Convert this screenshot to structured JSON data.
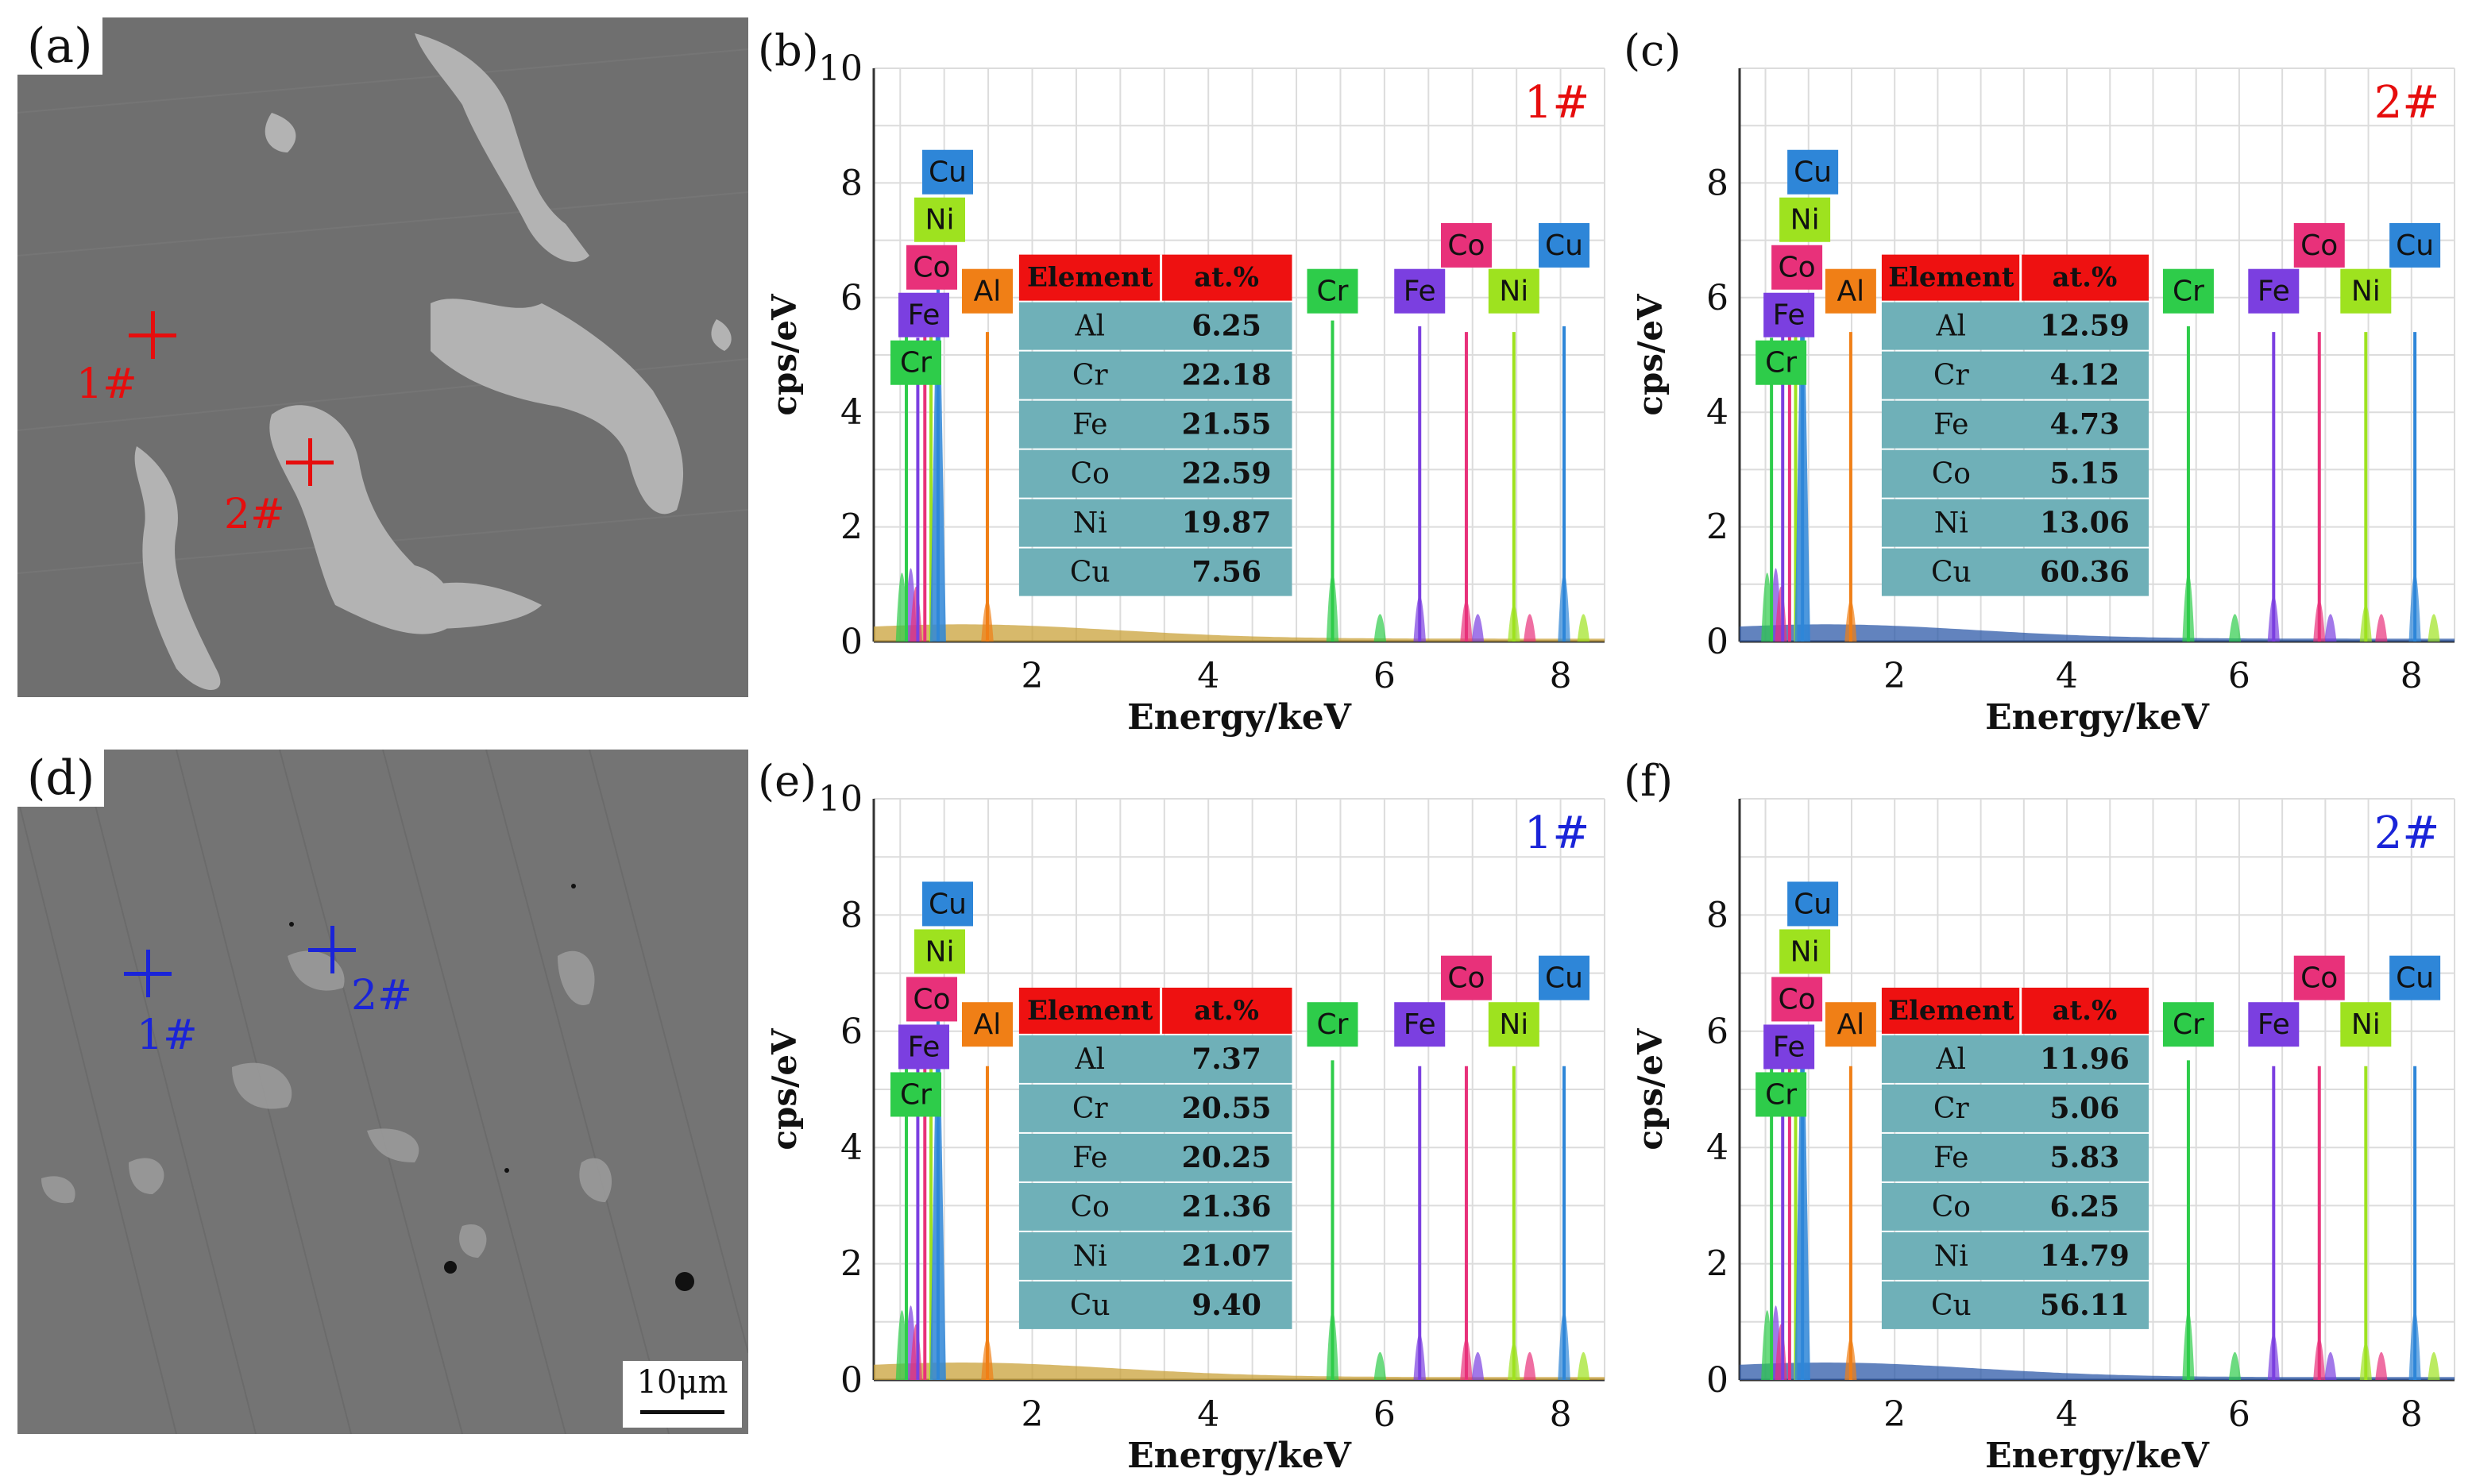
{
  "colors": {
    "Cr": "#2ecc4a",
    "Al": "#f07f16",
    "Fe": "#7b3fe0",
    "Co": "#e8317a",
    "Ni": "#9ee21f",
    "Cu": "#2e86d8",
    "background": "#2d5aa8",
    "marker_red": "#e60d0d",
    "marker_blue": "#1a24d8",
    "table_header": "#ee1111",
    "table_body": "#6fb0b8"
  },
  "panels": [
    {
      "label": "(a)",
      "type": "sem",
      "markers": [
        {
          "id": "1#",
          "color": "red"
        },
        {
          "id": "2#",
          "color": "red"
        }
      ]
    },
    {
      "label": "(d)",
      "type": "sem",
      "scale_bar": "10μm",
      "markers": [
        {
          "id": "1#",
          "color": "blue"
        },
        {
          "id": "2#",
          "color": "blue"
        }
      ]
    }
  ],
  "chart_data": [
    {
      "panel": "(b)",
      "type": "area",
      "tag": "1#",
      "tag_color": "#e60d0d",
      "xlabel": "Energy/keV",
      "ylabel": "cps/eV",
      "xlim": [
        0.2,
        8.5
      ],
      "ylim": [
        0,
        10
      ],
      "xticks": [
        "2",
        "4",
        "6",
        "8"
      ],
      "yticks": [
        "0",
        "2",
        "4",
        "6",
        "8",
        "10"
      ],
      "peaks": [
        {
          "x": 0.57,
          "y": 5.5,
          "el": "Cr"
        },
        {
          "x": 0.7,
          "y": 5.3,
          "el": "Fe"
        },
        {
          "x": 0.78,
          "y": 5.4,
          "el": "Co"
        },
        {
          "x": 0.85,
          "y": 5.4,
          "el": "Ni"
        },
        {
          "x": 0.93,
          "y": 6.2,
          "el": "Cu"
        },
        {
          "x": 1.49,
          "y": 5.4,
          "el": "Al"
        },
        {
          "x": 5.41,
          "y": 5.6,
          "el": "Cr"
        },
        {
          "x": 6.4,
          "y": 5.5,
          "el": "Fe"
        },
        {
          "x": 6.93,
          "y": 5.4,
          "el": "Co"
        },
        {
          "x": 7.47,
          "y": 5.4,
          "el": "Ni"
        },
        {
          "x": 8.04,
          "y": 5.5,
          "el": "Cu"
        }
      ],
      "left_labels": [
        "Cu",
        "Ni",
        "Co",
        "Fe",
        "Cr"
      ],
      "right_labels": [
        "Al",
        "Cr",
        "Fe",
        "Co",
        "Ni",
        "Cu"
      ],
      "table": {
        "headers": [
          "Element",
          "at.%"
        ],
        "rows": [
          [
            "Al",
            "6.25"
          ],
          [
            "Cr",
            "22.18"
          ],
          [
            "Fe",
            "21.55"
          ],
          [
            "Co",
            "22.59"
          ],
          [
            "Ni",
            "19.87"
          ],
          [
            "Cu",
            "7.56"
          ]
        ]
      }
    },
    {
      "panel": "(c)",
      "type": "area",
      "tag": "2#",
      "tag_color": "#e60d0d",
      "xlabel": "Energy/keV",
      "ylabel": "cps/eV",
      "xlim": [
        0.2,
        8.5
      ],
      "ylim": [
        0,
        10
      ],
      "xticks": [
        "2",
        "4",
        "6",
        "8"
      ],
      "yticks": [
        "0",
        "2",
        "4",
        "6",
        "8"
      ],
      "peaks": [
        {
          "x": 0.57,
          "y": 5.3,
          "el": "Cr"
        },
        {
          "x": 0.7,
          "y": 5.4,
          "el": "Fe"
        },
        {
          "x": 0.78,
          "y": 5.4,
          "el": "Co"
        },
        {
          "x": 0.85,
          "y": 5.4,
          "el": "Ni"
        },
        {
          "x": 0.93,
          "y": 6.0,
          "el": "Cu"
        },
        {
          "x": 1.49,
          "y": 5.4,
          "el": "Al"
        },
        {
          "x": 5.41,
          "y": 5.5,
          "el": "Cr"
        },
        {
          "x": 6.4,
          "y": 5.4,
          "el": "Fe"
        },
        {
          "x": 6.93,
          "y": 5.4,
          "el": "Co"
        },
        {
          "x": 7.47,
          "y": 5.4,
          "el": "Ni"
        },
        {
          "x": 8.04,
          "y": 5.4,
          "el": "Cu"
        }
      ],
      "left_labels": [
        "Cu",
        "Ni",
        "Co",
        "Fe",
        "Cr"
      ],
      "right_labels": [
        "Al",
        "Cr",
        "Fe",
        "Co",
        "Ni",
        "Cu"
      ],
      "table": {
        "headers": [
          "Element",
          "at.%"
        ],
        "rows": [
          [
            "Al",
            "12.59"
          ],
          [
            "Cr",
            "4.12"
          ],
          [
            "Fe",
            "4.73"
          ],
          [
            "Co",
            "5.15"
          ],
          [
            "Ni",
            "13.06"
          ],
          [
            "Cu",
            "60.36"
          ]
        ]
      }
    },
    {
      "panel": "(e)",
      "type": "area",
      "tag": "1#",
      "tag_color": "#1a24d8",
      "xlabel": "Energy/keV",
      "ylabel": "cps/eV",
      "xlim": [
        0.2,
        8.5
      ],
      "ylim": [
        0,
        10
      ],
      "xticks": [
        "2",
        "4",
        "6",
        "8"
      ],
      "yticks": [
        "0",
        "2",
        "4",
        "6",
        "8",
        "10"
      ],
      "peaks": [
        {
          "x": 0.57,
          "y": 5.5,
          "el": "Cr"
        },
        {
          "x": 0.7,
          "y": 5.4,
          "el": "Fe"
        },
        {
          "x": 0.78,
          "y": 5.4,
          "el": "Co"
        },
        {
          "x": 0.85,
          "y": 5.4,
          "el": "Ni"
        },
        {
          "x": 0.93,
          "y": 6.3,
          "el": "Cu"
        },
        {
          "x": 1.49,
          "y": 5.4,
          "el": "Al"
        },
        {
          "x": 5.41,
          "y": 5.5,
          "el": "Cr"
        },
        {
          "x": 6.4,
          "y": 5.4,
          "el": "Fe"
        },
        {
          "x": 6.93,
          "y": 5.4,
          "el": "Co"
        },
        {
          "x": 7.47,
          "y": 5.4,
          "el": "Ni"
        },
        {
          "x": 8.04,
          "y": 5.4,
          "el": "Cu"
        }
      ],
      "left_labels": [
        "Cu",
        "Ni",
        "Co",
        "Fe",
        "Cr"
      ],
      "right_labels": [
        "Al",
        "Cr",
        "Fe",
        "Co",
        "Ni",
        "Cu"
      ],
      "table": {
        "headers": [
          "Element",
          "at.%"
        ],
        "rows": [
          [
            "Al",
            "7.37"
          ],
          [
            "Cr",
            "20.55"
          ],
          [
            "Fe",
            "20.25"
          ],
          [
            "Co",
            "21.36"
          ],
          [
            "Ni",
            "21.07"
          ],
          [
            "Cu",
            "9.40"
          ]
        ]
      }
    },
    {
      "panel": "(f)",
      "type": "area",
      "tag": "2#",
      "tag_color": "#1a24d8",
      "xlabel": "Energy/keV",
      "ylabel": "cps/eV",
      "xlim": [
        0.2,
        8.5
      ],
      "ylim": [
        0,
        10
      ],
      "xticks": [
        "2",
        "4",
        "6",
        "8"
      ],
      "yticks": [
        "0",
        "2",
        "4",
        "6",
        "8"
      ],
      "peaks": [
        {
          "x": 0.57,
          "y": 5.4,
          "el": "Cr"
        },
        {
          "x": 0.7,
          "y": 5.4,
          "el": "Fe"
        },
        {
          "x": 0.78,
          "y": 5.4,
          "el": "Co"
        },
        {
          "x": 0.85,
          "y": 5.4,
          "el": "Ni"
        },
        {
          "x": 0.93,
          "y": 6.1,
          "el": "Cu"
        },
        {
          "x": 1.49,
          "y": 5.4,
          "el": "Al"
        },
        {
          "x": 5.41,
          "y": 5.5,
          "el": "Cr"
        },
        {
          "x": 6.4,
          "y": 5.4,
          "el": "Fe"
        },
        {
          "x": 6.93,
          "y": 5.4,
          "el": "Co"
        },
        {
          "x": 7.47,
          "y": 5.4,
          "el": "Ni"
        },
        {
          "x": 8.04,
          "y": 5.4,
          "el": "Cu"
        }
      ],
      "left_labels": [
        "Cu",
        "Ni",
        "Co",
        "Fe",
        "Cr"
      ],
      "right_labels": [
        "Al",
        "Cr",
        "Fe",
        "Co",
        "Ni",
        "Cu"
      ],
      "table": {
        "headers": [
          "Element",
          "at.%"
        ],
        "rows": [
          [
            "Al",
            "11.96"
          ],
          [
            "Cr",
            "5.06"
          ],
          [
            "Fe",
            "5.83"
          ],
          [
            "Co",
            "6.25"
          ],
          [
            "Ni",
            "14.79"
          ],
          [
            "Cu",
            "56.11"
          ]
        ]
      }
    }
  ]
}
